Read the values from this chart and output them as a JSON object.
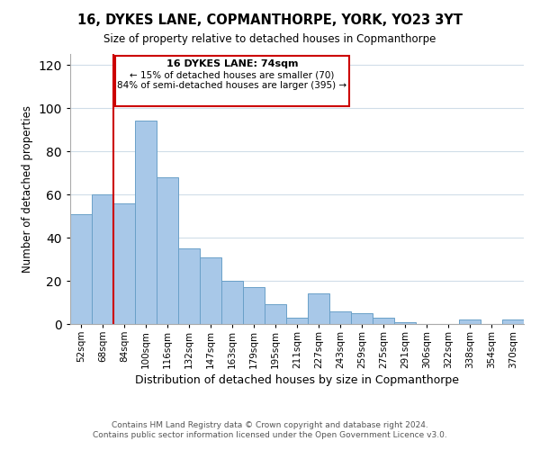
{
  "title": "16, DYKES LANE, COPMANTHORPE, YORK, YO23 3YT",
  "subtitle": "Size of property relative to detached houses in Copmanthorpe",
  "xlabel": "Distribution of detached houses by size in Copmanthorpe",
  "ylabel": "Number of detached properties",
  "bar_labels": [
    "52sqm",
    "68sqm",
    "84sqm",
    "100sqm",
    "116sqm",
    "132sqm",
    "147sqm",
    "163sqm",
    "179sqm",
    "195sqm",
    "211sqm",
    "227sqm",
    "243sqm",
    "259sqm",
    "275sqm",
    "291sqm",
    "306sqm",
    "322sqm",
    "338sqm",
    "354sqm",
    "370sqm"
  ],
  "bar_heights": [
    51,
    60,
    56,
    94,
    68,
    35,
    31,
    20,
    17,
    9,
    3,
    14,
    6,
    5,
    3,
    1,
    0,
    0,
    2,
    0,
    2
  ],
  "bar_color": "#a8c8e8",
  "bar_edge_color": "#6aA0c8",
  "marker_label": "16 DYKES LANE: 74sqm",
  "annotation_line1": "← 15% of detached houses are smaller (70)",
  "annotation_line2": "84% of semi-detached houses are larger (395) →",
  "vline_color": "#cc0000",
  "annotation_box_edge": "#cc0000",
  "ylim": [
    0,
    125
  ],
  "yticks": [
    0,
    20,
    40,
    60,
    80,
    100,
    120
  ],
  "footer_line1": "Contains HM Land Registry data © Crown copyright and database right 2024.",
  "footer_line2": "Contains public sector information licensed under the Open Government Licence v3.0.",
  "background_color": "#ffffff",
  "grid_color": "#d0dde8"
}
